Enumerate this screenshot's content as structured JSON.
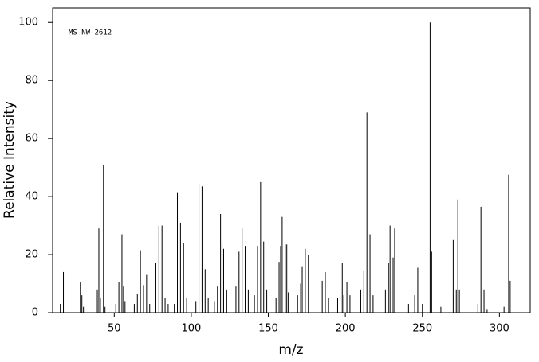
{
  "chart_data": {
    "type": "bar",
    "annotation": "MS-NW-2612",
    "xlabel": "m/z",
    "ylabel": "Relative Intensity",
    "color": "#000000",
    "x": [
      15,
      17,
      28,
      29,
      30,
      39,
      40,
      41,
      43,
      44,
      51,
      53,
      55,
      56,
      57,
      63,
      65,
      67,
      69,
      71,
      73,
      77,
      79,
      81,
      83,
      85,
      89,
      91,
      93,
      95,
      97,
      103,
      105,
      107,
      109,
      111,
      115,
      117,
      119,
      120,
      121,
      123,
      129,
      131,
      133,
      135,
      137,
      141,
      143,
      145,
      147,
      149,
      155,
      157,
      158,
      159,
      161,
      162,
      163,
      169,
      171,
      172,
      174,
      176,
      185,
      187,
      189,
      195,
      198,
      199,
      201,
      203,
      210,
      212,
      214,
      216,
      218,
      226,
      228,
      229,
      231,
      232,
      241,
      245,
      247,
      250,
      255,
      256,
      262,
      268,
      270,
      272,
      273,
      274,
      286,
      288,
      290,
      292,
      303,
      306,
      307
    ],
    "values": [
      3,
      14,
      10.4,
      6,
      2,
      8,
      29,
      5,
      51,
      2,
      3,
      10.5,
      27,
      9,
      4,
      3,
      6.5,
      21.5,
      9.5,
      13,
      3,
      17,
      30,
      30,
      5,
      3,
      3,
      41.5,
      31,
      24,
      5,
      4,
      44.5,
      43.5,
      15,
      5,
      4,
      9,
      34,
      24,
      22,
      8,
      9,
      21,
      29,
      23,
      8,
      6,
      23,
      45,
      24.5,
      8,
      5,
      17.5,
      23,
      33,
      23.5,
      23.5,
      7,
      6,
      10,
      16,
      22,
      20,
      11,
      14,
      5,
      5,
      17,
      6,
      10.5,
      6,
      8,
      14.5,
      69,
      27,
      6,
      8,
      17,
      30,
      19,
      29,
      3,
      6,
      15.5,
      3,
      100,
      21,
      2,
      2,
      25,
      8,
      39,
      8,
      3,
      36.5,
      8,
      1,
      2,
      47.5,
      11
    ],
    "xlim": [
      10,
      320
    ],
    "ylim": [
      0,
      105
    ],
    "xticks": [
      50,
      100,
      150,
      200,
      250,
      300
    ],
    "yticks": [
      0,
      20,
      40,
      60,
      80,
      100
    ]
  }
}
